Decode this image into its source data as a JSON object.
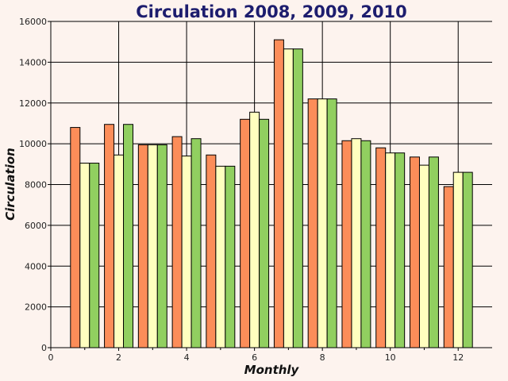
{
  "chart_data": {
    "type": "bar",
    "title": "Circulation 2008, 2009, 2010",
    "xlabel": "Monthly",
    "ylabel": "Circulation",
    "x": [
      1,
      2,
      3,
      4,
      5,
      6,
      7,
      8,
      9,
      10,
      11,
      12
    ],
    "xlim": [
      0,
      13
    ],
    "ylim": [
      0,
      16000
    ],
    "xticks": [
      0,
      2,
      4,
      6,
      8,
      10,
      12
    ],
    "yticks": [
      0,
      2000,
      4000,
      6000,
      8000,
      10000,
      12000,
      14000,
      16000
    ],
    "grid": true,
    "series": [
      {
        "color": "#fc8d59",
        "values": [
          10800,
          10950,
          9950,
          10350,
          9450,
          11200,
          15100,
          12200,
          10150,
          9800,
          9350,
          7900
        ]
      },
      {
        "color": "#ffffbf",
        "values": [
          9050,
          9450,
          9950,
          9400,
          8900,
          11550,
          14650,
          12200,
          10250,
          9550,
          8950,
          8600
        ]
      },
      {
        "color": "#91cf60",
        "values": [
          9050,
          10950,
          9950,
          10250,
          8900,
          11200,
          14650,
          12200,
          10150,
          9550,
          9350,
          8600
        ]
      }
    ]
  }
}
